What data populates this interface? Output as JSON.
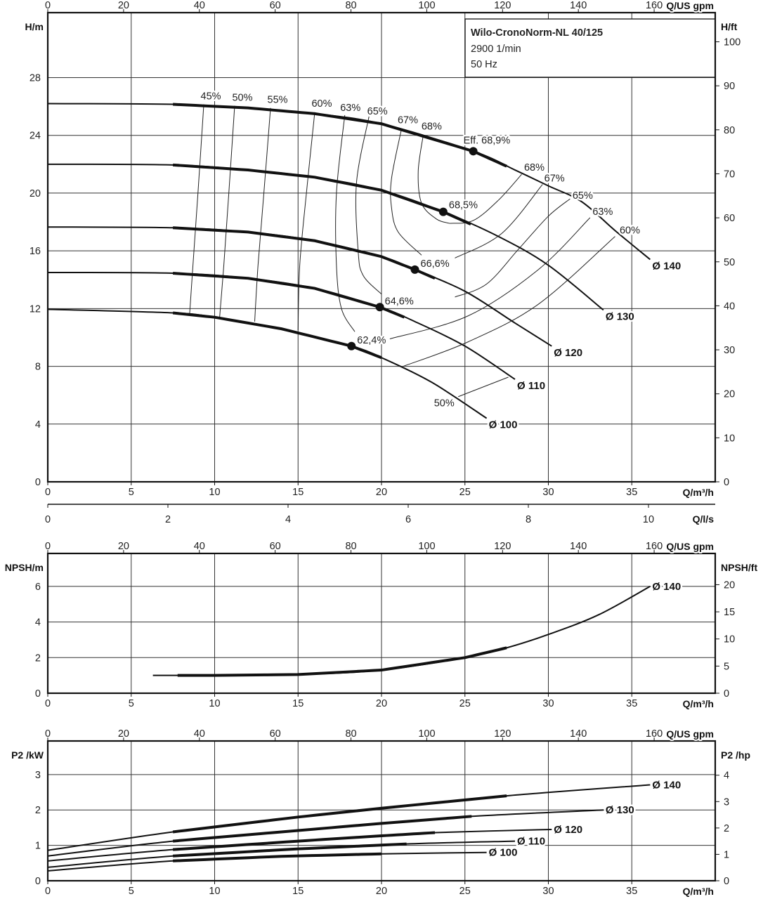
{
  "chart_data": [
    {
      "type": "line",
      "title_box": {
        "name": "Wilo-CronoNorm-NL 40/125",
        "speed": "2900 1/min",
        "frequency": "50 Hz"
      },
      "xlabel": "Q/m³/h",
      "x2label": "Q/US gpm",
      "x3label": "Q/l/s",
      "ylabel": "H/m",
      "y2label": "H/ft",
      "xlim": [
        0,
        40
      ],
      "ylim": [
        0,
        32.5
      ],
      "x_ticks": [
        0,
        5,
        10,
        15,
        20,
        25,
        30,
        35
      ],
      "x2_ticks": [
        0,
        20,
        40,
        60,
        80,
        100,
        120,
        140,
        160
      ],
      "x3_ticks": [
        0,
        2,
        4,
        6,
        8,
        10
      ],
      "y_ticks": [
        0,
        4,
        8,
        12,
        16,
        20,
        24,
        28
      ],
      "y2_ticks": [
        0,
        10,
        20,
        30,
        40,
        50,
        60,
        70,
        80,
        90,
        100
      ],
      "grid": true,
      "series": [
        {
          "name": "Ø 140",
          "points": [
            [
              0,
              26.2
            ],
            [
              7.5,
              26.15
            ],
            [
              12,
              25.9
            ],
            [
              16,
              25.5
            ],
            [
              20,
              24.8
            ],
            [
              25.5,
              22.9
            ],
            [
              28,
              21.6
            ],
            [
              30,
              20.5
            ],
            [
              32,
              19.4
            ],
            [
              34,
              17.4
            ],
            [
              36.1,
              15.4
            ]
          ],
          "preferred_range": [
            7.5,
            27.5
          ],
          "bep": [
            25.5,
            22.9
          ],
          "bep_label": "Eff. 68,9%"
        },
        {
          "name": "Ø 130",
          "points": [
            [
              0,
              22.0
            ],
            [
              7.5,
              21.95
            ],
            [
              12,
              21.6
            ],
            [
              16,
              21.1
            ],
            [
              20,
              20.2
            ],
            [
              23.7,
              18.7
            ],
            [
              27,
              17.0
            ],
            [
              30,
              15.0
            ],
            [
              33.3,
              11.9
            ]
          ],
          "preferred_range": [
            7.5,
            25.4
          ],
          "bep": [
            23.7,
            18.7
          ],
          "bep_label": "68,5%"
        },
        {
          "name": "Ø 120",
          "points": [
            [
              0,
              17.65
            ],
            [
              7.5,
              17.6
            ],
            [
              12,
              17.3
            ],
            [
              16,
              16.7
            ],
            [
              20,
              15.6
            ],
            [
              22,
              14.7
            ],
            [
              25,
              13.2
            ],
            [
              28,
              11.0
            ],
            [
              30.2,
              9.4
            ]
          ],
          "preferred_range": [
            7.5,
            23.2
          ],
          "bep": [
            22.0,
            14.7
          ],
          "bep_label": "66,6%"
        },
        {
          "name": "Ø 110",
          "points": [
            [
              0,
              14.5
            ],
            [
              7.5,
              14.45
            ],
            [
              12,
              14.1
            ],
            [
              16,
              13.4
            ],
            [
              19.9,
              12.1
            ],
            [
              22,
              11.1
            ],
            [
              25,
              9.4
            ],
            [
              28,
              7.1
            ]
          ],
          "preferred_range": [
            7.5,
            21.5
          ],
          "bep": [
            19.9,
            12.1
          ],
          "bep_label": "64,6%"
        },
        {
          "name": "Ø 100",
          "points": [
            [
              0,
              11.95
            ],
            [
              7.5,
              11.7
            ],
            [
              10,
              11.4
            ],
            [
              14,
              10.6
            ],
            [
              18.2,
              9.4
            ],
            [
              20,
              8.6
            ],
            [
              23,
              6.9
            ],
            [
              26.3,
              4.4
            ]
          ],
          "preferred_range": [
            7.5,
            20.0
          ],
          "bep": [
            18.2,
            9.4
          ],
          "bep_label": "62,4%"
        }
      ],
      "efficiency_curves": [
        {
          "label": "45%",
          "points": [
            [
              9.35,
              26.15
            ],
            [
              9.0,
              20
            ],
            [
              8.7,
              15
            ],
            [
              8.5,
              11.6
            ]
          ]
        },
        {
          "label": "50%",
          "points": [
            [
              11.2,
              26.05
            ],
            [
              10.85,
              20
            ],
            [
              10.55,
              15
            ],
            [
              10.3,
              11.4
            ]
          ]
        },
        {
          "label": "55%",
          "points": [
            [
              13.35,
              25.9
            ],
            [
              12.95,
              20
            ],
            [
              12.6,
              15
            ],
            [
              12.4,
              11.1
            ]
          ]
        },
        {
          "label": "60%",
          "points": [
            [
              16.0,
              25.6
            ],
            [
              15.5,
              20
            ],
            [
              15.1,
              15
            ],
            [
              15.0,
              10.5
            ]
          ]
        },
        {
          "label": "63%",
          "points": [
            [
              17.8,
              25.4
            ],
            [
              17.3,
              20
            ],
            [
              17.3,
              15
            ],
            [
              17.6,
              12
            ],
            [
              18.4,
              10.4
            ]
          ]
        },
        {
          "label": "65%",
          "points": [
            [
              19.25,
              25.3
            ],
            [
              18.5,
              20.7
            ],
            [
              18.6,
              16
            ],
            [
              18.9,
              14.3
            ],
            [
              20.0,
              13.0
            ]
          ]
        },
        {
          "label": "67%",
          "points": [
            [
              21.2,
              24.45
            ],
            [
              20.6,
              21
            ],
            [
              20.6,
              19
            ],
            [
              21.0,
              17.3
            ],
            [
              22.4,
              15.7
            ]
          ]
        },
        {
          "label": "68%",
          "points": [
            [
              22.5,
              24.0
            ],
            [
              22.2,
              21.5
            ],
            [
              22.4,
              19.3
            ],
            [
              23.3,
              18.2
            ],
            [
              24.1,
              17.9
            ]
          ]
        },
        {
          "label": "68%",
          "points": [
            [
              28.4,
              21.3
            ],
            [
              27.0,
              19.5
            ],
            [
              25.5,
              18.1
            ],
            [
              24.1,
              17.9
            ]
          ]
        },
        {
          "label": "67%",
          "points": [
            [
              29.65,
              20.6
            ],
            [
              27.2,
              17.2
            ],
            [
              24.4,
              15.5
            ]
          ]
        },
        {
          "label": "65%",
          "points": [
            [
              31.3,
              19.6
            ],
            [
              30.0,
              18.4
            ],
            [
              28.2,
              16.1
            ],
            [
              26.3,
              13.7
            ],
            [
              24.4,
              12.8
            ]
          ]
        },
        {
          "label": "63%",
          "points": [
            [
              32.5,
              18.3
            ],
            [
              29.4,
              14.7
            ],
            [
              25.2,
              11.5
            ],
            [
              20.5,
              9.9
            ]
          ]
        },
        {
          "label": "60%",
          "points": [
            [
              34.0,
              17.0
            ],
            [
              29.4,
              12.3
            ],
            [
              25.2,
              9.7
            ],
            [
              21.3,
              8.0
            ]
          ]
        },
        {
          "label": "50%",
          "points": [
            [
              24.6,
              5.9
            ],
            [
              27.6,
              7.25
            ]
          ]
        }
      ]
    },
    {
      "type": "line",
      "xlabel": "Q/m³/h",
      "x2label": "Q/US gpm",
      "ylabel": "NPSH/m",
      "y2label": "NPSH/ft",
      "xlim": [
        0,
        40
      ],
      "ylim": [
        0,
        7.85
      ],
      "x_ticks": [
        0,
        5,
        10,
        15,
        20,
        25,
        30,
        35
      ],
      "x2_ticks": [
        0,
        20,
        40,
        60,
        80,
        100,
        120,
        140,
        160
      ],
      "y_ticks": [
        0,
        2,
        4,
        6
      ],
      "y2_ticks": [
        0,
        5,
        10,
        15,
        20
      ],
      "grid": true,
      "series": [
        {
          "name": "Ø 140",
          "points": [
            [
              6.3,
              1.0
            ],
            [
              10,
              1.0
            ],
            [
              15,
              1.05
            ],
            [
              20,
              1.3
            ],
            [
              25,
              2.0
            ],
            [
              27.5,
              2.55
            ],
            [
              30,
              3.3
            ],
            [
              33,
              4.4
            ],
            [
              36.1,
              6.0
            ]
          ],
          "preferred_range": [
            7.5,
            27.5
          ]
        }
      ]
    },
    {
      "type": "line",
      "xlabel": "Q/m³/h",
      "x2label": "Q/US gpm",
      "ylabel": "P2 /kW",
      "y2label": "P2 /hp",
      "xlim": [
        0,
        40
      ],
      "ylim": [
        0,
        3.95
      ],
      "x_ticks": [
        0,
        5,
        10,
        15,
        20,
        25,
        30,
        35
      ],
      "x2_ticks": [
        0,
        20,
        40,
        60,
        80,
        100,
        120,
        140,
        160
      ],
      "y_ticks": [
        0,
        1,
        2,
        3
      ],
      "y2_ticks": [
        0,
        1,
        2,
        3,
        4
      ],
      "grid": true,
      "series": [
        {
          "name": "Ø 140",
          "points": [
            [
              0,
              0.86
            ],
            [
              7.5,
              1.38
            ],
            [
              15,
              1.8
            ],
            [
              20,
              2.05
            ],
            [
              27.5,
              2.4
            ],
            [
              36.1,
              2.71
            ]
          ],
          "preferred_range": [
            7.5,
            27.5
          ]
        },
        {
          "name": "Ø 130",
          "points": [
            [
              0,
              0.7
            ],
            [
              7.5,
              1.12
            ],
            [
              15,
              1.42
            ],
            [
              20,
              1.62
            ],
            [
              25.4,
              1.82
            ],
            [
              33.3,
              2.0
            ]
          ],
          "preferred_range": [
            7.5,
            25.4
          ]
        },
        {
          "name": "Ø 120",
          "points": [
            [
              0,
              0.56
            ],
            [
              7.5,
              0.88
            ],
            [
              15,
              1.12
            ],
            [
              20,
              1.27
            ],
            [
              23.2,
              1.36
            ],
            [
              30.2,
              1.45
            ]
          ],
          "preferred_range": [
            7.5,
            23.2
          ]
        },
        {
          "name": "Ø 110",
          "points": [
            [
              0,
              0.38
            ],
            [
              7.5,
              0.7
            ],
            [
              15,
              0.9
            ],
            [
              21.5,
              1.04
            ],
            [
              28,
              1.12
            ]
          ],
          "preferred_range": [
            7.5,
            21.5
          ]
        },
        {
          "name": "Ø 100",
          "points": [
            [
              0,
              0.28
            ],
            [
              7.5,
              0.56
            ],
            [
              14,
              0.69
            ],
            [
              20,
              0.76
            ],
            [
              26.3,
              0.8
            ]
          ],
          "preferred_range": [
            7.5,
            20.0
          ]
        }
      ]
    }
  ]
}
